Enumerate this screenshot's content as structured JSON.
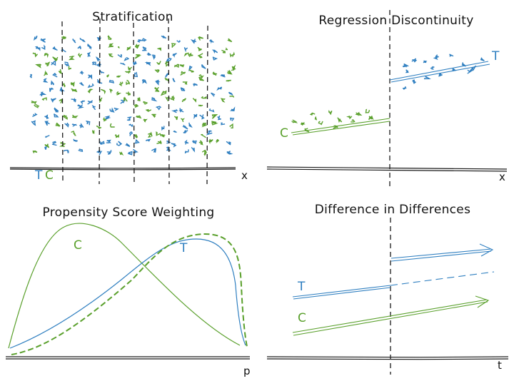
{
  "colors": {
    "blue": "#2f7fc0",
    "green": "#5aa02c",
    "ink": "#1a1a1a"
  },
  "panels": {
    "stratification": {
      "title": "Stratification",
      "labels": [
        "T",
        "C"
      ],
      "xlabel": "x"
    },
    "regression_discontinuity": {
      "title": "Regression Discontinuity",
      "treated_label": "T",
      "control_label": "C",
      "xlabel": "x"
    },
    "propensity": {
      "title": "Propensity Score Weighting",
      "control_label": "C",
      "treated_label": "T",
      "xlabel": "p"
    },
    "did": {
      "title": "Difference in Differences",
      "treated_label": "T",
      "control_label": "C",
      "xlabel": "t"
    }
  }
}
